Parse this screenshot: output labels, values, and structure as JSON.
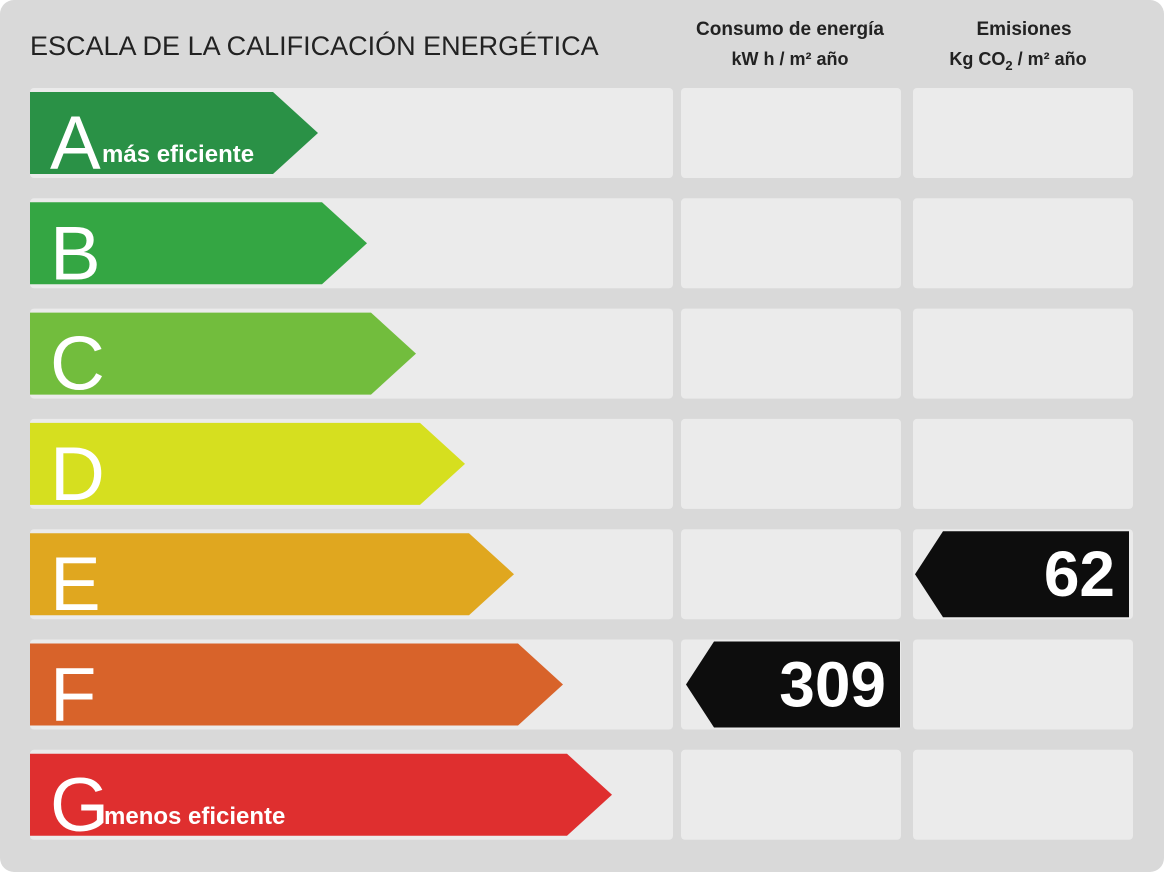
{
  "header": {
    "title": "ESCALA DE LA CALIFICACIÓN ENERGÉTICA",
    "consumption": {
      "title": "Consumo de energía",
      "unit": "kW h / m² año"
    },
    "emissions": {
      "title": "Emisiones",
      "unit_parts": [
        "Kg CO",
        "2",
        " / m² año"
      ]
    }
  },
  "classes": [
    {
      "letter": "A",
      "label": "más eficiente",
      "color": "#2a9146"
    },
    {
      "letter": "B",
      "color": "#34a643"
    },
    {
      "letter": "C",
      "color": "#72bd3d"
    },
    {
      "letter": "D",
      "color": "#d6df1f"
    },
    {
      "letter": "E",
      "color": "#e0a71f"
    },
    {
      "letter": "F",
      "color": "#d8632a"
    },
    {
      "letter": "G",
      "label": "menos eficiente",
      "color": "#df2f2f"
    }
  ],
  "ratings": {
    "consumption": {
      "class": "F",
      "value": 309
    },
    "emissions": {
      "class": "E",
      "value": 62
    }
  }
}
